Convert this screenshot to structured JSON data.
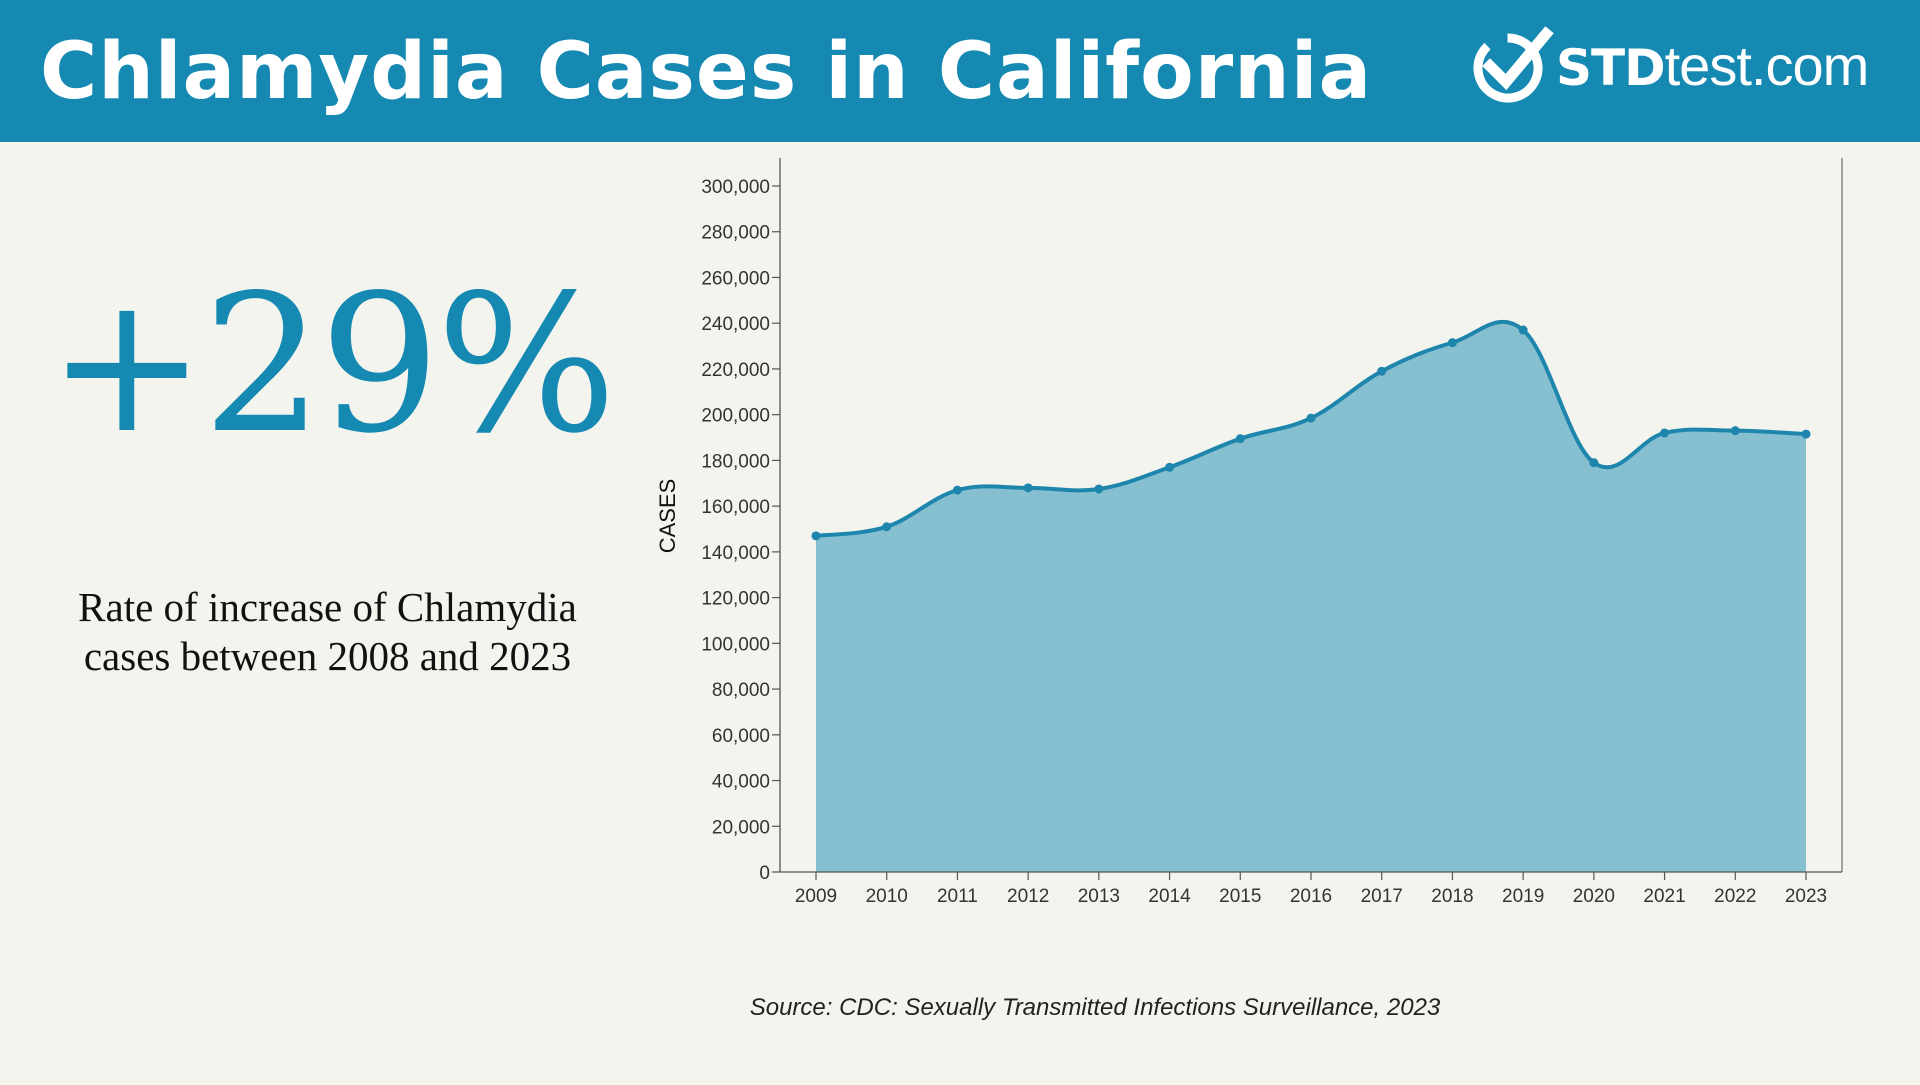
{
  "header": {
    "title": "Chlamydia Cases in California",
    "logo_strong": "STD",
    "logo_light": "test.com"
  },
  "stat": {
    "value": "+29%",
    "description": "Rate of increase of Chlamydia cases between 2008 and 2023"
  },
  "source": "Source: CDC: Sexually Transmitted Infections Surveillance, 2023",
  "colors": {
    "brand": "#1589b1",
    "area_fill": "#85bfd0",
    "line": "#1e86ad",
    "background": "#f4f4ef"
  },
  "chart_data": {
    "type": "area",
    "title": "",
    "xlabel": "",
    "ylabel": "CASES",
    "categories": [
      "2009",
      "2010",
      "2011",
      "2012",
      "2013",
      "2014",
      "2015",
      "2016",
      "2017",
      "2018",
      "2019",
      "2020",
      "2021",
      "2022",
      "2023"
    ],
    "series": [
      {
        "name": "Chlamydia cases",
        "values": [
          147000,
          151000,
          167000,
          168000,
          167500,
          177000,
          189500,
          198500,
          219000,
          231500,
          237000,
          179000,
          192000,
          193000,
          191500
        ]
      }
    ],
    "ylim": [
      0,
      300000
    ],
    "yticks": [
      0,
      20000,
      40000,
      60000,
      80000,
      100000,
      120000,
      140000,
      160000,
      180000,
      200000,
      220000,
      240000,
      260000,
      280000,
      300000
    ],
    "ytick_labels": [
      "0",
      "20,000",
      "40,000",
      "60,000",
      "80,000",
      "100,000",
      "120,000",
      "140,000",
      "160,000",
      "180,000",
      "200,000",
      "220,000",
      "240,000",
      "260,000",
      "280,000",
      "300,000"
    ],
    "grid": false,
    "legend": "none"
  }
}
